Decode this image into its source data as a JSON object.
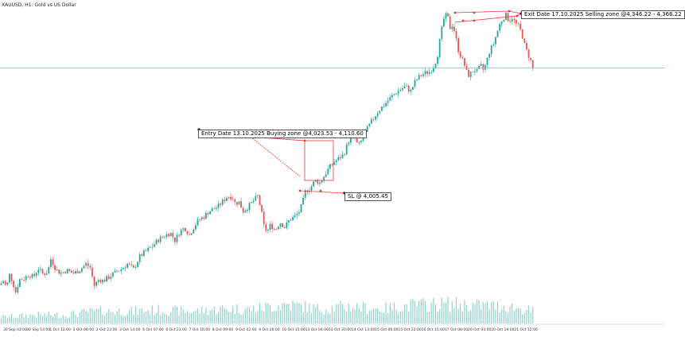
{
  "chart": {
    "symbol_title": "XAUUSD, H1:  Gold vs US Dollar",
    "colors": {
      "background": "#ffffff",
      "bull": "#26a69a",
      "bear": "#ef5350",
      "volume": "#8fd3c9",
      "hline": "#7fb8d8",
      "annotation": "#e53935"
    }
  },
  "annotations": {
    "entry": "Entry Date 13.10.2025      Buying zone @4,023.53 - 4,110.60",
    "sl": "SL  @ 4,005.45",
    "exit": "Exit Date  17.10.2025      Selling zone @4,346.22 - 4,366.22"
  },
  "chart_data": {
    "type": "candlestick",
    "series_name": "XAUUSD H1",
    "y_range": [
      3840,
      4380
    ],
    "horizontal_line": 4265,
    "time_labels": [
      "30 Sep 03:00",
      "30 Sep 14:00",
      "1 Oct 12:00",
      "2 Oct 06:00",
      "2 Oct 23:00",
      "3 Oct 14:00",
      "6 Oct 07:00",
      "6 Oct 23:00",
      "7 Oct 16:00",
      "8 Oct 09:00",
      "9 Oct 02:00",
      "9 Oct 20:00",
      "10 Oct 15:00",
      "13 Oct 04:00",
      "13 Oct 20:00",
      "14 Oct 13:00",
      "15 Oct 06:00",
      "15 Oct 22:00",
      "16 Oct 15:00",
      "17 Oct 08:00",
      "20 Oct 03:00",
      "20 Oct 19:00",
      "21 Oct 12:00"
    ],
    "close_path": [
      [
        0,
        3850
      ],
      [
        4,
        3858
      ],
      [
        8,
        3845
      ],
      [
        12,
        3870
      ],
      [
        16,
        3855
      ],
      [
        20,
        3835
      ],
      [
        24,
        3860
      ],
      [
        30,
        3862
      ],
      [
        36,
        3870
      ],
      [
        42,
        3865
      ],
      [
        48,
        3882
      ],
      [
        54,
        3870
      ],
      [
        60,
        3875
      ],
      [
        64,
        3900
      ],
      [
        70,
        3880
      ],
      [
        76,
        3872
      ],
      [
        84,
        3878
      ],
      [
        92,
        3872
      ],
      [
        100,
        3878
      ],
      [
        108,
        3890
      ],
      [
        114,
        3882
      ],
      [
        118,
        3848
      ],
      [
        124,
        3860
      ],
      [
        130,
        3858
      ],
      [
        138,
        3866
      ],
      [
        146,
        3875
      ],
      [
        154,
        3882
      ],
      [
        160,
        3890
      ],
      [
        168,
        3880
      ],
      [
        176,
        3905
      ],
      [
        184,
        3915
      ],
      [
        192,
        3925
      ],
      [
        200,
        3938
      ],
      [
        208,
        3945
      ],
      [
        214,
        3950
      ],
      [
        220,
        3935
      ],
      [
        226,
        3952
      ],
      [
        232,
        3960
      ],
      [
        238,
        3945
      ],
      [
        244,
        3962
      ],
      [
        250,
        3975
      ],
      [
        256,
        3980
      ],
      [
        262,
        3990
      ],
      [
        268,
        3995
      ],
      [
        274,
        4000
      ],
      [
        280,
        4010
      ],
      [
        286,
        4020
      ],
      [
        292,
        4018
      ],
      [
        296,
        4005
      ],
      [
        300,
        4010
      ],
      [
        306,
        3990
      ],
      [
        312,
        4000
      ],
      [
        318,
        4010
      ],
      [
        324,
        4020
      ],
      [
        328,
        3995
      ],
      [
        332,
        3960
      ],
      [
        336,
        3952
      ],
      [
        340,
        3965
      ],
      [
        346,
        3955
      ],
      [
        352,
        3970
      ],
      [
        358,
        3960
      ],
      [
        364,
        3975
      ],
      [
        370,
        3980
      ],
      [
        376,
        3990
      ],
      [
        380,
        4005
      ],
      [
        384,
        4030
      ],
      [
        390,
        4035
      ],
      [
        396,
        4050
      ],
      [
        402,
        4045
      ],
      [
        408,
        4060
      ],
      [
        414,
        4075
      ],
      [
        420,
        4085
      ],
      [
        426,
        4092
      ],
      [
        432,
        4100
      ],
      [
        438,
        4125
      ],
      [
        444,
        4140
      ],
      [
        450,
        4115
      ],
      [
        456,
        4130
      ],
      [
        462,
        4150
      ],
      [
        468,
        4165
      ],
      [
        474,
        4180
      ],
      [
        480,
        4190
      ],
      [
        486,
        4200
      ],
      [
        492,
        4210
      ],
      [
        498,
        4218
      ],
      [
        504,
        4225
      ],
      [
        510,
        4230
      ],
      [
        516,
        4220
      ],
      [
        522,
        4240
      ],
      [
        528,
        4250
      ],
      [
        534,
        4255
      ],
      [
        540,
        4258
      ],
      [
        546,
        4270
      ],
      [
        550,
        4290
      ],
      [
        554,
        4330
      ],
      [
        558,
        4360
      ],
      [
        562,
        4368
      ],
      [
        566,
        4340
      ],
      [
        569,
        4350
      ],
      [
        572,
        4330
      ],
      [
        576,
        4300
      ],
      [
        580,
        4285
      ],
      [
        584,
        4270
      ],
      [
        588,
        4250
      ],
      [
        592,
        4255
      ],
      [
        596,
        4262
      ],
      [
        600,
        4258
      ],
      [
        604,
        4270
      ],
      [
        608,
        4260
      ],
      [
        612,
        4280
      ],
      [
        616,
        4300
      ],
      [
        620,
        4310
      ],
      [
        624,
        4330
      ],
      [
        628,
        4348
      ],
      [
        632,
        4360
      ],
      [
        636,
        4366
      ],
      [
        640,
        4355
      ],
      [
        644,
        4362
      ],
      [
        648,
        4350
      ],
      [
        652,
        4345
      ],
      [
        656,
        4330
      ],
      [
        660,
        4305
      ],
      [
        664,
        4290
      ],
      [
        668,
        4275
      ],
      [
        670,
        4262
      ]
    ],
    "volume_path": [
      [
        0,
        0.25
      ],
      [
        40,
        0.35
      ],
      [
        80,
        0.35
      ],
      [
        120,
        0.5
      ],
      [
        160,
        0.5
      ],
      [
        200,
        0.55
      ],
      [
        240,
        0.5
      ],
      [
        280,
        0.6
      ],
      [
        320,
        0.6
      ],
      [
        360,
        0.8
      ],
      [
        400,
        0.6
      ],
      [
        440,
        0.7
      ],
      [
        480,
        0.6
      ],
      [
        520,
        0.75
      ],
      [
        560,
        0.8
      ],
      [
        600,
        0.75
      ],
      [
        640,
        0.7
      ],
      [
        670,
        0.5
      ]
    ]
  }
}
